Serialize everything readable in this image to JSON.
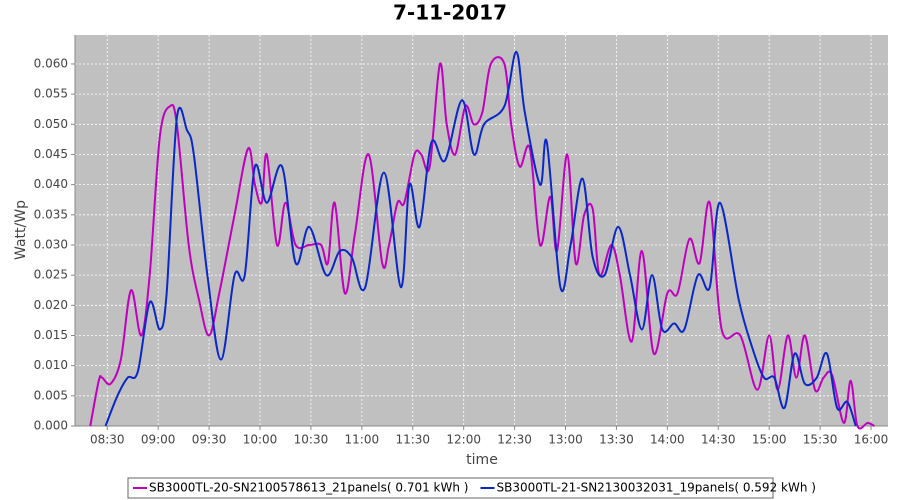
{
  "chart_data": {
    "type": "line",
    "title": "7-11-2017",
    "x_label": "time",
    "y_label": "Watt/Wp",
    "xlim": [
      "08:11",
      "16:10"
    ],
    "xticks": [
      "08:30",
      "09:00",
      "09:30",
      "10:00",
      "10:30",
      "11:00",
      "11:30",
      "12:00",
      "12:30",
      "13:00",
      "13:30",
      "14:00",
      "14:30",
      "15:00",
      "15:30",
      "16:00"
    ],
    "ylim": [
      0,
      0.0648
    ],
    "yticks": [
      {
        "value": 0,
        "label": "0.000"
      },
      {
        "value": 0.005,
        "label": "0.005"
      },
      {
        "value": 0.01,
        "label": "0.010"
      },
      {
        "value": 0.015,
        "label": "0.015"
      },
      {
        "value": 0.02,
        "label": "0.020"
      },
      {
        "value": 0.025,
        "label": "0.025"
      },
      {
        "value": 0.03,
        "label": "0.030"
      },
      {
        "value": 0.035,
        "label": "0.035"
      },
      {
        "value": 0.04,
        "label": "0.040"
      },
      {
        "value": 0.045,
        "label": "0.045"
      },
      {
        "value": 0.05,
        "label": "0.050"
      },
      {
        "value": 0.055,
        "label": "0.055"
      },
      {
        "value": 0.06,
        "label": "0.060"
      }
    ],
    "grid": true,
    "series": [
      {
        "name": "SB3000TL-20-SN2100578613_21panels( 0.701 kWh )",
        "color": "#c000c0",
        "x": [
          "08:20",
          "08:25",
          "08:27",
          "08:32",
          "08:38",
          "08:44",
          "08:50",
          "08:55",
          "09:01",
          "09:07",
          "09:11",
          "09:18",
          "09:24",
          "09:30",
          "09:36",
          "09:45",
          "09:53",
          "09:57",
          "10:01",
          "10:04",
          "10:10",
          "10:15",
          "10:21",
          "10:29",
          "10:36",
          "10:40",
          "10:44",
          "10:50",
          "10:56",
          "11:04",
          "11:12",
          "11:16",
          "11:21",
          "11:25",
          "11:31",
          "11:35",
          "11:40",
          "11:46",
          "11:50",
          "11:55",
          "12:01",
          "12:06",
          "12:11",
          "12:16",
          "12:24",
          "12:28",
          "12:33",
          "12:39",
          "12:45",
          "12:51",
          "12:55",
          "13:01",
          "13:06",
          "13:11",
          "13:16",
          "13:20",
          "13:27",
          "13:32",
          "13:39",
          "13:45",
          "13:52",
          "14:00",
          "14:06",
          "14:13",
          "14:19",
          "14:25",
          "14:32",
          "14:43",
          "14:53",
          "15:00",
          "15:05",
          "15:11",
          "15:16",
          "15:21",
          "15:27",
          "15:32",
          "15:37",
          "15:44",
          "15:48",
          "15:52",
          "15:58",
          "16:02"
        ],
        "values": [
          0,
          0.0075,
          0.008,
          0.007,
          0.011,
          0.0225,
          0.015,
          0.025,
          0.048,
          0.053,
          0.05,
          0.03,
          0.021,
          0.015,
          0.022,
          0.035,
          0.046,
          0.04,
          0.037,
          0.045,
          0.03,
          0.037,
          0.03,
          0.03,
          0.03,
          0.027,
          0.037,
          0.022,
          0.032,
          0.045,
          0.027,
          0.03,
          0.037,
          0.037,
          0.045,
          0.045,
          0.043,
          0.06,
          0.05,
          0.045,
          0.053,
          0.05,
          0.052,
          0.06,
          0.06,
          0.05,
          0.043,
          0.046,
          0.03,
          0.038,
          0.029,
          0.045,
          0.027,
          0.035,
          0.036,
          0.025,
          0.03,
          0.025,
          0.014,
          0.029,
          0.012,
          0.022,
          0.022,
          0.031,
          0.027,
          0.037,
          0.016,
          0.015,
          0.006,
          0.015,
          0.006,
          0.015,
          0.008,
          0.015,
          0.006,
          0.008,
          0.0085,
          0.0005,
          0.0075,
          0,
          0.0005,
          0
        ]
      },
      {
        "name": "SB3000TL-21-SN2130032031_19panels( 0.592 kWh )",
        "color": "#0a28c8",
        "x": [
          "08:29",
          "08:36",
          "08:42",
          "08:48",
          "08:55",
          "09:01",
          "09:05",
          "09:11",
          "09:17",
          "09:21",
          "09:29",
          "09:37",
          "09:45",
          "09:51",
          "09:57",
          "10:04",
          "10:13",
          "10:21",
          "10:29",
          "10:39",
          "10:47",
          "10:54",
          "11:02",
          "11:13",
          "11:23",
          "11:28",
          "11:34",
          "11:41",
          "11:49",
          "11:59",
          "12:06",
          "12:12",
          "12:24",
          "12:31",
          "12:36",
          "12:45",
          "12:49",
          "12:57",
          "13:03",
          "13:10",
          "13:16",
          "13:23",
          "13:31",
          "13:38",
          "13:45",
          "13:51",
          "13:57",
          "14:04",
          "14:10",
          "14:18",
          "14:25",
          "14:31",
          "14:42",
          "14:50",
          "14:57",
          "15:03",
          "15:09",
          "15:15",
          "15:21",
          "15:28",
          "15:34",
          "15:40",
          "15:46",
          "15:51"
        ],
        "values": [
          0,
          0.005,
          0.008,
          0.009,
          0.0205,
          0.016,
          0.022,
          0.051,
          0.049,
          0.045,
          0.025,
          0.011,
          0.025,
          0.025,
          0.043,
          0.037,
          0.043,
          0.027,
          0.033,
          0.025,
          0.029,
          0.028,
          0.023,
          0.042,
          0.023,
          0.04,
          0.033,
          0.047,
          0.044,
          0.054,
          0.045,
          0.05,
          0.053,
          0.062,
          0.052,
          0.04,
          0.047,
          0.023,
          0.03,
          0.041,
          0.028,
          0.025,
          0.033,
          0.025,
          0.016,
          0.025,
          0.016,
          0.017,
          0.016,
          0.025,
          0.023,
          0.037,
          0.021,
          0.013,
          0.008,
          0.008,
          0.003,
          0.012,
          0.007,
          0.008,
          0.012,
          0.003,
          0.004,
          0
        ]
      }
    ]
  }
}
